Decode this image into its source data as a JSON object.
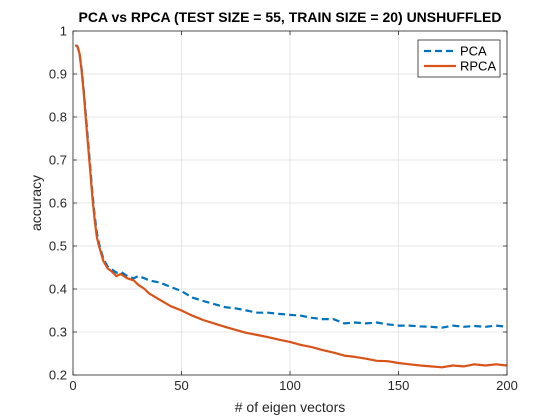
{
  "chart_data": {
    "type": "line",
    "title": "PCA vs RPCA (TEST SIZE = 55, TRAIN SIZE = 20) UNSHUFFLED",
    "xlabel": "# of eigen vectors",
    "ylabel": "accuracy",
    "xlim": [
      0,
      200
    ],
    "ylim": [
      0.2,
      1
    ],
    "xticks": [
      0,
      50,
      100,
      150,
      200
    ],
    "yticks": [
      0.2,
      0.3,
      0.4,
      0.5,
      0.6,
      0.7,
      0.8,
      0.9,
      1
    ],
    "grid": true,
    "legend_position": "top-right",
    "x": [
      1,
      2,
      3,
      4,
      5,
      6,
      7,
      8,
      9,
      10,
      11,
      12,
      14,
      16,
      18,
      20,
      22,
      25,
      28,
      30,
      33,
      35,
      40,
      45,
      50,
      55,
      60,
      65,
      70,
      75,
      80,
      85,
      90,
      95,
      100,
      105,
      110,
      115,
      120,
      125,
      130,
      135,
      140,
      145,
      150,
      155,
      160,
      165,
      170,
      175,
      180,
      185,
      190,
      195,
      200
    ],
    "series": [
      {
        "name": "PCA",
        "color": "#0072BD",
        "style": "dashed",
        "values": [
          0.967,
          0.965,
          0.95,
          0.91,
          0.86,
          0.8,
          0.74,
          0.68,
          0.62,
          0.57,
          0.53,
          0.505,
          0.47,
          0.452,
          0.445,
          0.438,
          0.44,
          0.43,
          0.425,
          0.43,
          0.425,
          0.42,
          0.415,
          0.405,
          0.395,
          0.38,
          0.372,
          0.365,
          0.358,
          0.355,
          0.35,
          0.345,
          0.345,
          0.342,
          0.34,
          0.338,
          0.333,
          0.33,
          0.33,
          0.32,
          0.322,
          0.32,
          0.322,
          0.318,
          0.315,
          0.315,
          0.313,
          0.312,
          0.31,
          0.315,
          0.312,
          0.314,
          0.312,
          0.315,
          0.312
        ]
      },
      {
        "name": "RPCA",
        "color": "#D95319",
        "style": "solid",
        "values": [
          0.967,
          0.965,
          0.948,
          0.905,
          0.855,
          0.79,
          0.73,
          0.67,
          0.61,
          0.56,
          0.52,
          0.5,
          0.465,
          0.448,
          0.44,
          0.43,
          0.435,
          0.425,
          0.42,
          0.41,
          0.4,
          0.39,
          0.375,
          0.36,
          0.35,
          0.338,
          0.328,
          0.32,
          0.312,
          0.305,
          0.298,
          0.293,
          0.288,
          0.282,
          0.277,
          0.27,
          0.265,
          0.258,
          0.252,
          0.245,
          0.242,
          0.238,
          0.233,
          0.232,
          0.228,
          0.225,
          0.222,
          0.22,
          0.218,
          0.222,
          0.22,
          0.225,
          0.222,
          0.225,
          0.222
        ]
      }
    ]
  }
}
